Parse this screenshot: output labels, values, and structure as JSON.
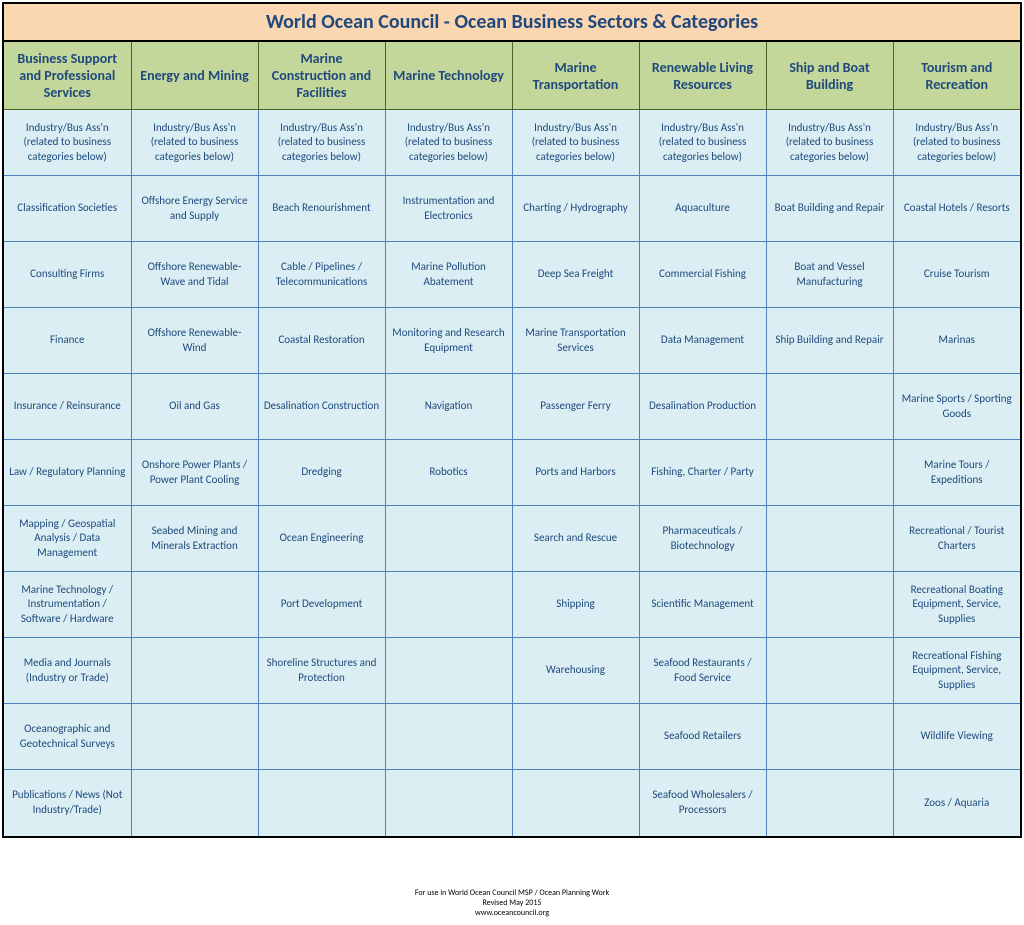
{
  "title": "World Ocean Council - Ocean Business Sectors & Categories",
  "title_bg": "#fad6b1",
  "title_color": "#1f497d",
  "title_fontsize": 20,
  "header_bg": "#c4d79b",
  "header_color": "#1f497d",
  "header_fontsize": 14,
  "header_border": "#4f6228",
  "cell_bg": "#daeef3",
  "cell_color": "#1f497d",
  "cell_fontsize": 11,
  "cell_border": "#4f81bd",
  "outer_border": "#000000",
  "columns": [
    "Business Support and Professional Services",
    "Energy and Mining",
    "Marine Construction and Facilities",
    "Marine Technology",
    "Marine Transportation",
    "Renewable Living Resources",
    "Ship and Boat Building",
    "Tourism and Recreation"
  ],
  "rows": [
    [
      "Industry/Bus Ass'n (related to business categories below)",
      "Industry/Bus Ass'n (related to business categories below)",
      "Industry/Bus Ass'n (related to business categories below)",
      "Industry/Bus Ass'n (related to business categories below)",
      "Industry/Bus Ass'n (related to business categories below)",
      "Industry/Bus Ass'n (related to business categories below)",
      "Industry/Bus Ass'n (related to business categories below)",
      "Industry/Bus Ass'n (related to business categories below)"
    ],
    [
      "Classification Societies",
      "Offshore Energy Service and Supply",
      "Beach Renourishment",
      "Instrumentation and Electronics",
      "Charting / Hydrography",
      "Aquaculture",
      "Boat Building and Repair",
      "Coastal Hotels / Resorts"
    ],
    [
      "Consulting Firms",
      "Offshore Renewable- Wave and Tidal",
      "Cable / Pipelines / Telecommunications",
      "Marine Pollution Abatement",
      "Deep Sea Freight",
      "Commercial Fishing",
      "Boat and Vessel Manufacturing",
      "Cruise Tourism"
    ],
    [
      "Finance",
      "Offshore Renewable- Wind",
      "Coastal Restoration",
      "Monitoring and Research Equipment",
      "Marine Transportation Services",
      "Data Management",
      "Ship Building and Repair",
      "Marinas"
    ],
    [
      "Insurance / Reinsurance",
      "Oil and Gas",
      "Desalination Construction",
      "Navigation",
      "Passenger Ferry",
      "Desalination Production",
      "",
      "Marine Sports / Sporting Goods"
    ],
    [
      "Law / Regulatory Planning",
      "Onshore Power Plants / Power Plant Cooling",
      "Dredging",
      "Robotics",
      "Ports and Harbors",
      "Fishing, Charter / Party",
      "",
      "Marine Tours / Expeditions"
    ],
    [
      "Mapping / Geospatial Analysis /  Data Management",
      "Seabed Mining and Minerals Extraction",
      "Ocean Engineering",
      "",
      "Search and Rescue",
      "Pharmaceuticals / Biotechnology",
      "",
      "Recreational / Tourist Charters"
    ],
    [
      "Marine Technology / Instrumentation / Software / Hardware",
      "",
      "Port Development",
      "",
      "Shipping",
      "Scientific Management",
      "",
      "Recreational Boating Equipment, Service, Supplies"
    ],
    [
      "Media and Journals (Industry or Trade)",
      "",
      "Shoreline Structures and Protection",
      "",
      "Warehousing",
      "Seafood Restaurants / Food Service",
      "",
      "Recreational Fishing Equipment, Service, Supplies"
    ],
    [
      "Oceanographic and Geotechnical Surveys",
      "",
      "",
      "",
      "",
      "Seafood Retailers",
      "",
      "Wildlife Viewing"
    ],
    [
      "Publications / News (Not Industry/Trade)",
      "",
      "",
      "",
      "",
      "Seafood Wholesalers / Processors",
      "",
      "Zoos / Aquaria"
    ]
  ],
  "footer": {
    "line1": "For use in World Ocean Council MSP / Ocean Planning Work",
    "line2": "Revised May 2015",
    "line3": "www.oceancouncil.org"
  }
}
